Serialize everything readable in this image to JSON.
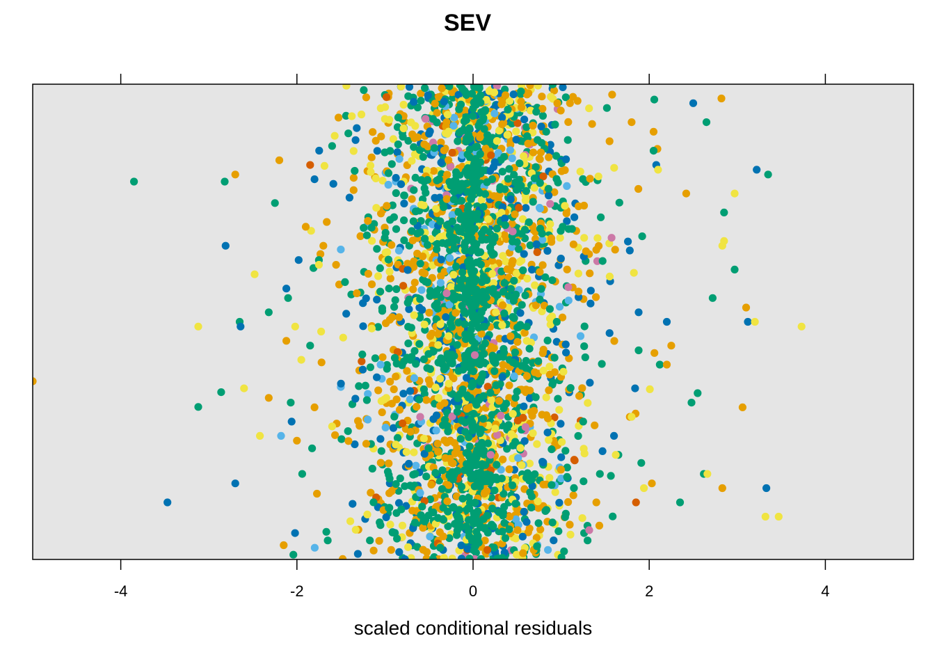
{
  "chart_data": {
    "type": "scatter",
    "title": "SEV",
    "xlabel": "scaled conditional residuals",
    "ylabel": "",
    "xlim": [
      -5,
      5
    ],
    "ylim": [
      0,
      1
    ],
    "x_ticks": [
      -4,
      -2,
      0,
      2,
      4
    ],
    "x_tick_labels": [
      "-4",
      "-2",
      "0",
      "2",
      "4"
    ],
    "x_ticks_top": true,
    "grid": false,
    "panel_background": "#E5E5E5",
    "point_colors": [
      "#E69F00",
      "#0072B2",
      "#009E73",
      "#F0E442",
      "#56B4E9",
      "#CC79A7",
      "#D55E00"
    ],
    "series": [
      {
        "color": "#009E73",
        "values": [
          [
            -3.85,
            0.795
          ],
          [
            -2.82,
            0.795
          ],
          [
            -2.86,
            0.352
          ],
          [
            -3.12,
            0.321
          ],
          [
            -2.32,
            0.52
          ],
          [
            -2.65,
            0.5
          ],
          [
            -2.1,
            0.55
          ],
          [
            -1.75,
            0.63
          ],
          [
            2.65,
            0.92
          ],
          [
            3.35,
            0.81
          ],
          [
            2.85,
            0.73
          ],
          [
            2.72,
            0.55
          ],
          [
            2.97,
            0.61
          ],
          [
            2.55,
            0.35
          ],
          [
            2.62,
            0.18
          ],
          [
            2.12,
            0.41
          ],
          [
            1.92,
            0.68
          ],
          [
            2.35,
            0.12
          ],
          [
            2.48,
            0.33
          ],
          [
            1.65,
            0.22
          ],
          [
            2.05,
            0.86
          ],
          [
            1.88,
            0.44
          ],
          [
            -1.6,
            0.87
          ],
          [
            -2.04,
            0.01
          ],
          [
            -1.85,
            0.45
          ],
          [
            -2.25,
            0.75
          ],
          [
            -2.07,
            0.33
          ],
          [
            -1.42,
            0.27
          ],
          [
            -1.94,
            0.18
          ],
          [
            -1.65,
            0.04
          ],
          [
            1.3,
            0.04
          ],
          [
            1.44,
            0.18
          ],
          [
            1.52,
            0.95
          ],
          [
            1.25,
            0.29
          ],
          [
            0.95,
            0.5
          ],
          [
            -0.85,
            0.93
          ],
          [
            -0.55,
            0.08
          ]
        ]
      },
      {
        "color": "#0072B2",
        "values": [
          [
            -3.47,
            0.12
          ],
          [
            -2.81,
            0.66
          ],
          [
            -2.64,
            0.49
          ],
          [
            -2.7,
            0.16
          ],
          [
            -2.06,
            0.29
          ],
          [
            -1.98,
            0.63
          ],
          [
            3.22,
            0.82
          ],
          [
            3.33,
            0.15
          ],
          [
            3.12,
            0.5
          ],
          [
            2.5,
            0.96
          ],
          [
            2.08,
            0.83
          ],
          [
            2.2,
            0.5
          ],
          [
            1.88,
            0.52
          ],
          [
            1.84,
            0.36
          ],
          [
            -2.12,
            0.57
          ],
          [
            -1.8,
            0.8
          ],
          [
            1.6,
            0.26
          ],
          [
            1.78,
            0.65
          ],
          [
            -1.5,
            0.37
          ],
          [
            1.15,
            0.72
          ]
        ]
      },
      {
        "color": "#E69F00",
        "values": [
          [
            -5.0,
            0.375
          ],
          [
            -2.7,
            0.81
          ],
          [
            -2.32,
            0.34
          ],
          [
            -1.8,
            0.32
          ],
          [
            -2.12,
            0.46
          ],
          [
            3.06,
            0.32
          ],
          [
            3.1,
            0.53
          ],
          [
            2.82,
            0.97
          ],
          [
            2.42,
            0.77
          ],
          [
            2.83,
            0.15
          ],
          [
            2.05,
            0.9
          ],
          [
            2.2,
            0.41
          ],
          [
            2.03,
            0.16
          ],
          [
            1.8,
            0.92
          ],
          [
            2.25,
            0.45
          ],
          [
            -2.0,
            0.25
          ],
          [
            -2.2,
            0.84
          ],
          [
            -1.7,
            0.66
          ],
          [
            -2.15,
            0.03
          ],
          [
            1.55,
            0.88
          ],
          [
            1.78,
            0.3
          ],
          [
            -1.9,
            0.7
          ],
          [
            -0.93,
            0.02
          ],
          [
            1.1,
            0.96
          ],
          [
            -1.32,
            0.56
          ],
          [
            1.4,
            0.12
          ]
        ]
      },
      {
        "color": "#F0E442",
        "values": [
          [
            -3.12,
            0.49
          ],
          [
            -2.48,
            0.6
          ],
          [
            -2.6,
            0.36
          ],
          [
            -2.42,
            0.26
          ],
          [
            -2.02,
            0.49
          ],
          [
            3.73,
            0.49
          ],
          [
            2.97,
            0.77
          ],
          [
            2.83,
            0.66
          ],
          [
            3.32,
            0.09
          ],
          [
            3.47,
            0.09
          ],
          [
            3.2,
            0.5
          ],
          [
            2.85,
            0.67
          ],
          [
            2.66,
            0.18
          ],
          [
            2.1,
            0.82
          ],
          [
            1.8,
            0.3
          ],
          [
            -1.95,
            0.42
          ],
          [
            -1.75,
            0.62
          ],
          [
            1.62,
            0.22
          ],
          [
            1.94,
            0.15
          ],
          [
            -1.6,
            0.28
          ]
        ]
      },
      {
        "color": "#56B4E9",
        "values": [
          [
            -2.18,
            0.26
          ],
          [
            0.85,
            0.02
          ],
          [
            -1.05,
            0.41
          ],
          [
            1.22,
            0.47
          ],
          [
            -0.6,
            0.14
          ]
        ]
      },
      {
        "color": "#CC79A7",
        "values": [
          [
            -0.3,
            0.56
          ],
          [
            0.45,
            0.69
          ],
          [
            -0.6,
            0.3
          ],
          [
            0.2,
            0.22
          ],
          [
            0.02,
            0.43
          ]
        ]
      },
      {
        "color": "#D55E00",
        "values": [
          [
            -1.85,
            0.83
          ],
          [
            1.85,
            0.12
          ],
          [
            0.52,
            0.74
          ]
        ]
      }
    ]
  }
}
